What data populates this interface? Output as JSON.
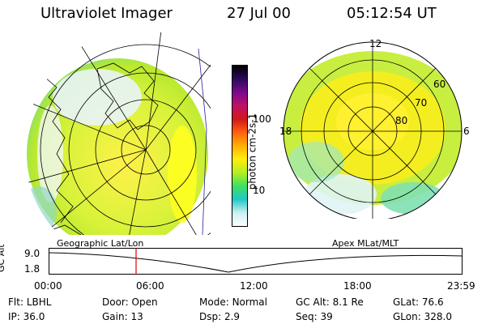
{
  "header": {
    "title": "Ultraviolet Imager",
    "date": "27 Jul 00",
    "time": "05:12:54 UT"
  },
  "panels": {
    "left_caption": "Geographic Lat/Lon",
    "right_caption": "Apex MLat/MLT"
  },
  "colorbar": {
    "label": "photon cm-2s-1",
    "ticks": [
      "100",
      "10"
    ],
    "colors": [
      "#000000",
      "#2a0a5a",
      "#7a0a8a",
      "#c0106a",
      "#d01818",
      "#ff6010",
      "#ffb000",
      "#ffee10",
      "#b4f020",
      "#40e060",
      "#20c8c8",
      "#c8f0f0",
      "#ffffff"
    ]
  },
  "mlt_plot": {
    "mlt_labels": [
      "12",
      "6",
      "0",
      "18"
    ],
    "lat_labels": [
      "60",
      "70",
      "80"
    ]
  },
  "timeline": {
    "y_axis_label": "GC Alt",
    "y_ticks": [
      "9.0",
      "1.8"
    ],
    "x_ticks": [
      "00:00",
      "06:00",
      "12:00",
      "18:00",
      "23:59"
    ],
    "marker_time": "05:12:54"
  },
  "status": {
    "row1": [
      {
        "key": "Flt:",
        "value": "LBHL"
      },
      {
        "key": "Door:",
        "value": "Open"
      },
      {
        "key": "Mode:",
        "value": "Normal"
      },
      {
        "key": "GC Alt:",
        "value": "8.1 Re"
      },
      {
        "key": "GLat:",
        "value": "76.6"
      }
    ],
    "row2": [
      {
        "key": "IP:",
        "value": "36.0"
      },
      {
        "key": "Gain:",
        "value": "13"
      },
      {
        "key": "Dsp:",
        "value": "2.9"
      },
      {
        "key": "Seq:",
        "value": "39"
      },
      {
        "key": "GLon:",
        "value": "328.0"
      }
    ]
  }
}
